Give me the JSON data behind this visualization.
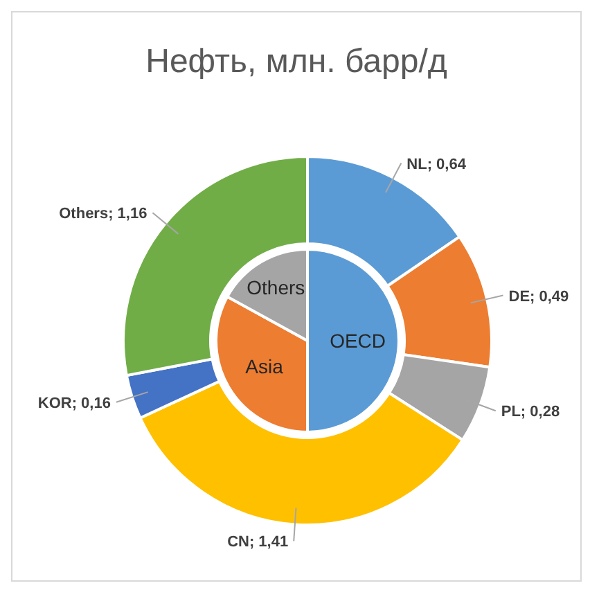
{
  "chart_data": [
    {
      "type": "donut",
      "title": "Нефть, млн. барр/д",
      "categories": [
        "NL",
        "DE",
        "PL",
        "CN",
        "KOR",
        "Others"
      ],
      "values": [
        0.64,
        0.49,
        0.28,
        1.41,
        0.16,
        1.16
      ],
      "value_labels": [
        "0,64",
        "0,49",
        "0,28",
        "1,41",
        "0,16",
        "1,16"
      ],
      "colors": [
        "#5b9bd5",
        "#ed7d31",
        "#a5a5a5",
        "#ffc000",
        "#4472c4",
        "#70ad47"
      ]
    },
    {
      "type": "pie",
      "categories": [
        "OECD",
        "Asia",
        "Others"
      ],
      "values": [
        50,
        33,
        17
      ],
      "colors": [
        "#5b9bd5",
        "#ed7d31",
        "#a5a5a5"
      ]
    }
  ]
}
